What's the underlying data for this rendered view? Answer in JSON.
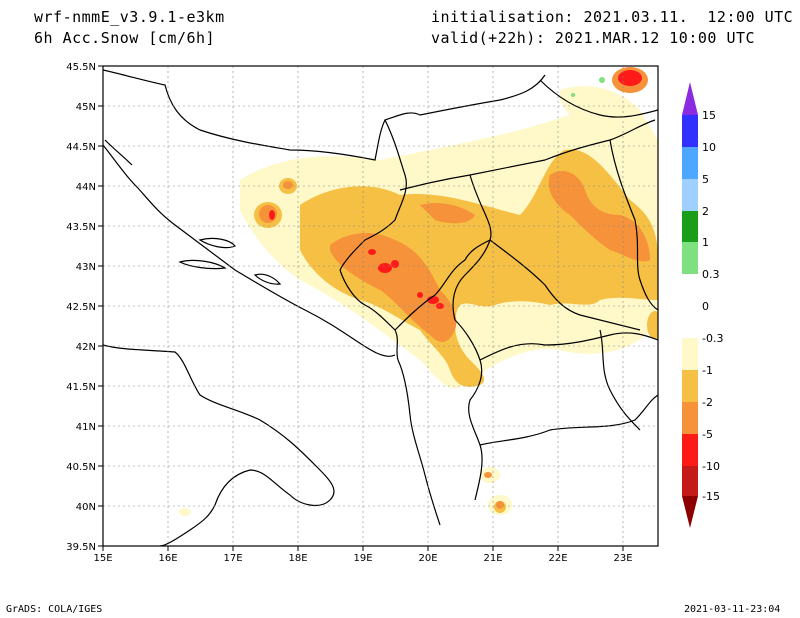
{
  "header": {
    "model": "wrf-nmmE_v3.9.1-e3km",
    "variable": "6h Acc.Snow [cm/6h]",
    "init": "initialisation: 2021.03.11.  12:00 UTC",
    "valid": "valid(+22h): 2021.MAR.12 10:00 UTC"
  },
  "axes": {
    "lat_labels": [
      "45.5N",
      "45N",
      "44.5N",
      "44N",
      "43.5N",
      "43N",
      "42.5N",
      "42N",
      "41.5N",
      "41N",
      "40.5N",
      "40N",
      "39.5N"
    ],
    "lon_labels": [
      "15E",
      "16E",
      "17E",
      "18E",
      "19E",
      "20E",
      "21E",
      "22E",
      "23E"
    ]
  },
  "colorbar": {
    "labels": [
      "15",
      "10",
      "5",
      "2",
      "1",
      "0.3",
      "0",
      "-0.3",
      "-1",
      "-2",
      "-5",
      "-10",
      "-15"
    ],
    "colors": [
      "#8a2be2",
      "#3030ff",
      "#4da6ff",
      "#9fd0ff",
      "#1a9e1a",
      "#7ee07e",
      "#ffffff",
      "#fff8c8",
      "#f5c043",
      "#f5923a",
      "#ff1a1a",
      "#c41a1a",
      "#8b0000"
    ]
  },
  "footer": {
    "left": "GrADS: COLA/IGES",
    "right": "2021-03-11-23:04"
  }
}
